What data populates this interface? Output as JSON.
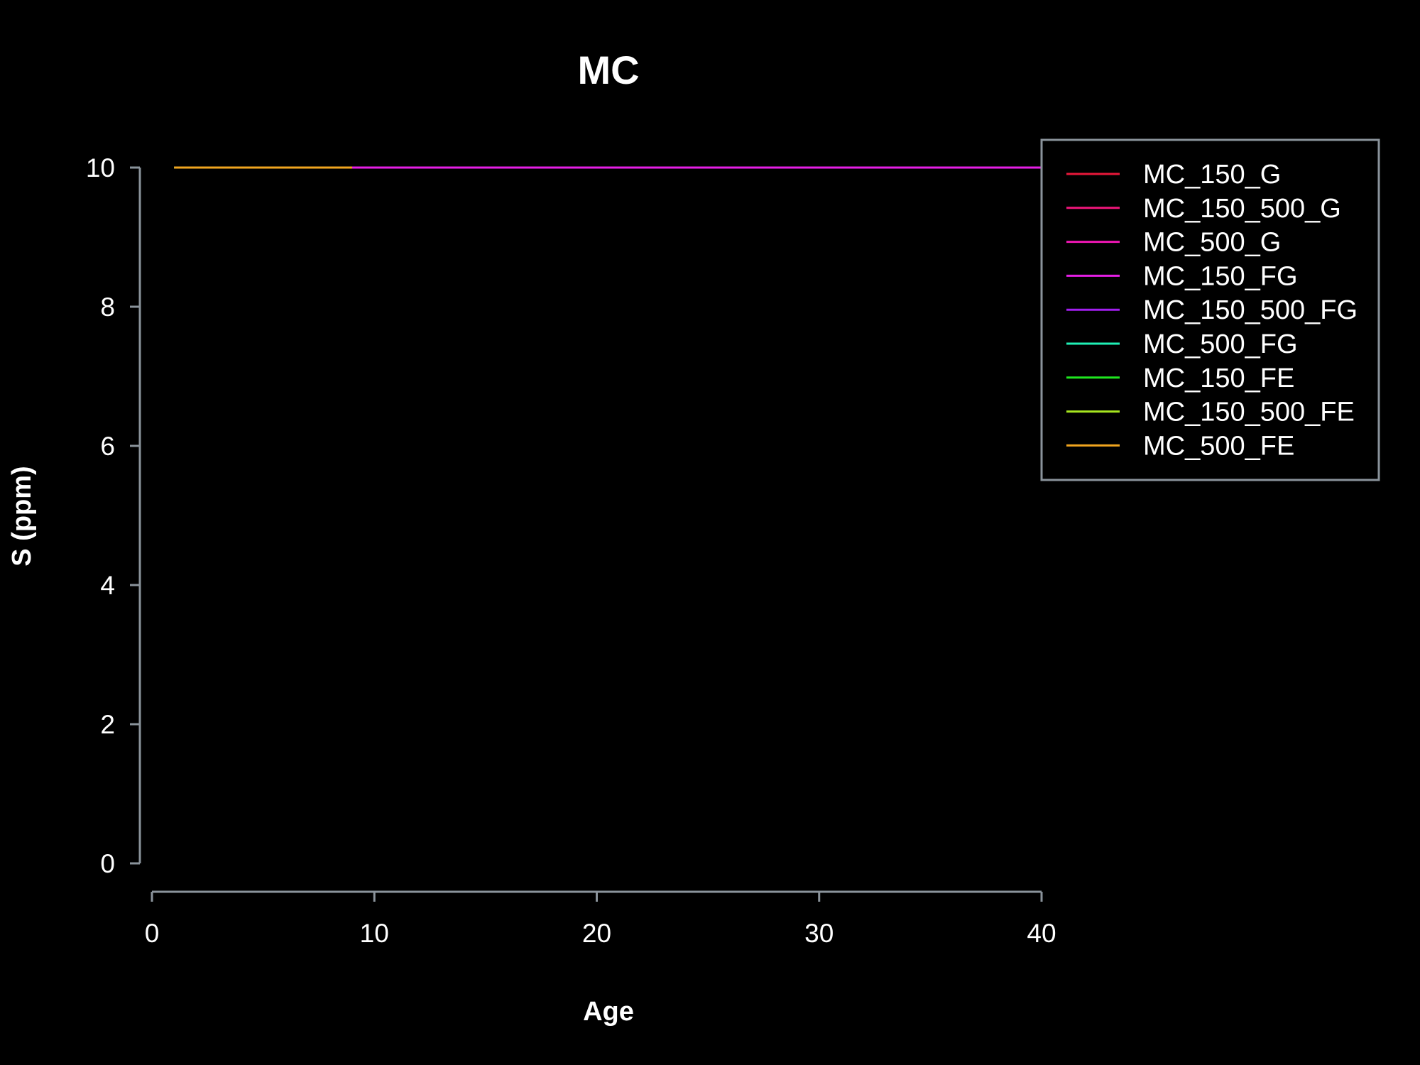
{
  "chart_data": {
    "type": "line",
    "title": "MC",
    "xlabel": "Age",
    "ylabel": "S (ppm)",
    "xlim": [
      0,
      40
    ],
    "ylim": [
      0,
      10
    ],
    "x_ticks": [
      "0",
      "10",
      "20",
      "30",
      "40"
    ],
    "y_ticks": [
      "0",
      "2",
      "4",
      "6",
      "8",
      "10"
    ],
    "grid": false,
    "legend_position": "top-right",
    "background": "#000000",
    "axis_color": "#8a939b",
    "series": [
      {
        "name": "MC_150_G",
        "color": "#e8173a",
        "x": [
          1,
          40
        ],
        "y": [
          10,
          10
        ]
      },
      {
        "name": "MC_150_500_G",
        "color": "#f0167a",
        "x": [
          1,
          40
        ],
        "y": [
          10,
          10
        ]
      },
      {
        "name": "MC_500_G",
        "color": "#f016b4",
        "x": [
          1,
          40
        ],
        "y": [
          10,
          10
        ]
      },
      {
        "name": "MC_150_FG",
        "color": "#e61fe6",
        "x": [
          1,
          40
        ],
        "y": [
          10,
          10
        ]
      },
      {
        "name": "MC_150_500_FG",
        "color": "#a21ff0",
        "x": [
          1,
          9
        ],
        "y": [
          10,
          10
        ]
      },
      {
        "name": "MC_500_FG",
        "color": "#1ff0b6",
        "x": [
          1,
          9
        ],
        "y": [
          10,
          10
        ]
      },
      {
        "name": "MC_150_FE",
        "color": "#1fe61f",
        "x": [
          1,
          9
        ],
        "y": [
          10,
          10
        ]
      },
      {
        "name": "MC_150_500_FE",
        "color": "#a6e61f",
        "x": [
          1,
          9
        ],
        "y": [
          10,
          10
        ]
      },
      {
        "name": "MC_500_FE",
        "color": "#f0a51f",
        "x": [
          1,
          9
        ],
        "y": [
          10,
          10
        ]
      }
    ]
  }
}
